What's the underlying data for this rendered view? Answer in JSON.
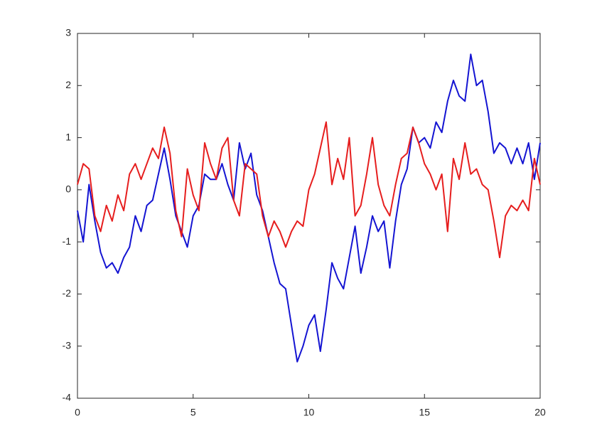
{
  "chart_data": {
    "type": "line",
    "x": [
      0,
      0.25,
      0.5,
      0.75,
      1,
      1.25,
      1.5,
      1.75,
      2,
      2.25,
      2.5,
      2.75,
      3,
      3.25,
      3.5,
      3.75,
      4,
      4.25,
      4.5,
      4.75,
      5,
      5.25,
      5.5,
      5.75,
      6,
      6.25,
      6.5,
      6.75,
      7,
      7.25,
      7.5,
      7.75,
      8,
      8.25,
      8.5,
      8.75,
      9,
      9.25,
      9.5,
      9.75,
      10,
      10.25,
      10.5,
      10.75,
      11,
      11.25,
      11.5,
      11.75,
      12,
      12.25,
      12.5,
      12.75,
      13,
      13.25,
      13.5,
      13.75,
      14,
      14.25,
      14.5,
      14.75,
      15,
      15.25,
      15.5,
      15.75,
      16,
      16.25,
      16.5,
      16.75,
      17,
      17.25,
      17.5,
      17.75,
      18,
      18.25,
      18.5,
      18.75,
      19,
      19.25,
      19.5,
      19.75,
      20
    ],
    "series": [
      {
        "color": "#1414d2",
        "values": [
          -0.4,
          -1.0,
          0.1,
          -0.6,
          -1.2,
          -1.5,
          -1.4,
          -1.6,
          -1.3,
          -1.1,
          -0.5,
          -0.8,
          -0.3,
          -0.2,
          0.3,
          0.8,
          0.2,
          -0.5,
          -0.8,
          -1.1,
          -0.5,
          -0.3,
          0.3,
          0.2,
          0.2,
          0.5,
          0.1,
          -0.2,
          0.9,
          0.4,
          0.7,
          -0.1,
          -0.4,
          -0.9,
          -1.4,
          -1.8,
          -1.9,
          -2.6,
          -3.3,
          -3.0,
          -2.6,
          -2.4,
          -3.1,
          -2.3,
          -1.4,
          -1.7,
          -1.9,
          -1.3,
          -0.7,
          -1.6,
          -1.1,
          -0.5,
          -0.8,
          -0.6,
          -1.5,
          -0.6,
          0.1,
          0.4,
          1.2,
          0.9,
          1.0,
          0.8,
          1.3,
          1.1,
          1.7,
          2.1,
          1.8,
          1.7,
          2.6,
          2.0,
          2.1,
          1.5,
          0.7,
          0.9,
          0.8,
          0.5,
          0.8,
          0.5,
          0.9,
          0.2,
          0.9
        ]
      },
      {
        "color": "#e61e1e",
        "values": [
          0.1,
          0.5,
          0.4,
          -0.5,
          -0.8,
          -0.3,
          -0.6,
          -0.1,
          -0.4,
          0.3,
          0.5,
          0.2,
          0.5,
          0.8,
          0.6,
          1.2,
          0.7,
          -0.4,
          -0.9,
          0.4,
          -0.1,
          -0.4,
          0.9,
          0.5,
          0.2,
          0.8,
          1.0,
          -0.2,
          -0.5,
          0.5,
          0.4,
          0.3,
          -0.5,
          -0.9,
          -0.6,
          -0.8,
          -1.1,
          -0.8,
          -0.6,
          -0.7,
          0.0,
          0.3,
          0.8,
          1.3,
          0.1,
          0.6,
          0.2,
          1.0,
          -0.5,
          -0.3,
          0.3,
          1.0,
          0.1,
          -0.3,
          -0.5,
          0.1,
          0.6,
          0.7,
          1.2,
          0.9,
          0.5,
          0.3,
          0.0,
          0.3,
          -0.8,
          0.6,
          0.2,
          0.9,
          0.3,
          0.4,
          0.1,
          0.0,
          -0.6,
          -1.3,
          -0.5,
          -0.3,
          -0.4,
          -0.2,
          -0.4,
          0.6,
          0.1
        ]
      }
    ],
    "xlim": [
      0,
      20
    ],
    "xticks": [
      0,
      5,
      10,
      15,
      20
    ],
    "ylim": [
      -4,
      3
    ],
    "yticks": [
      -4,
      -3,
      -2,
      -1,
      0,
      1,
      2,
      3
    ]
  }
}
